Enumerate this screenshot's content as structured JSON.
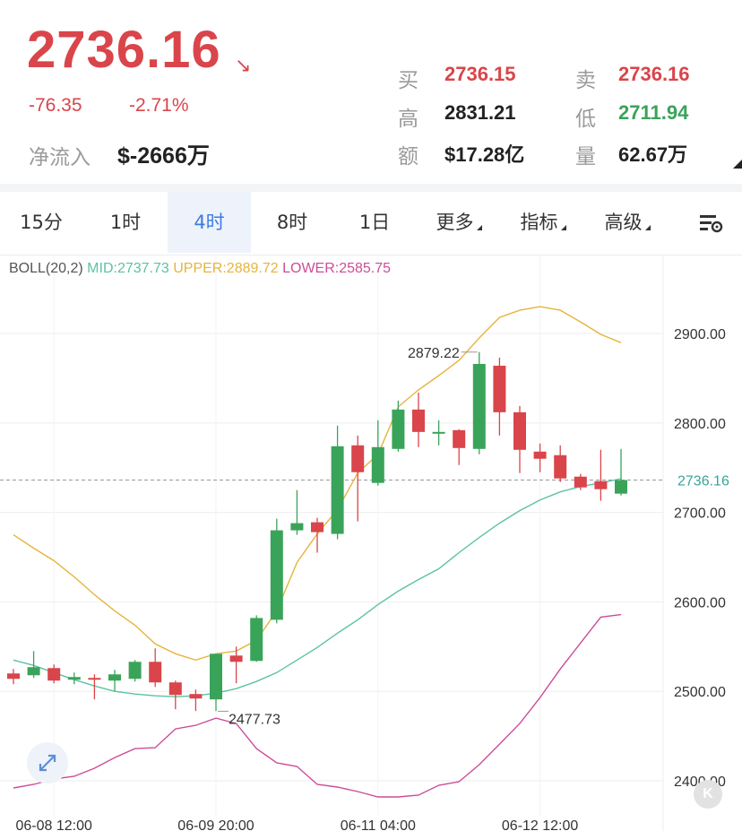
{
  "header": {
    "price": "2736.16",
    "change": "-76.35",
    "change_pct": "-2.71%",
    "inflow_label": "净流入",
    "inflow_value": "$-2666万",
    "stats": {
      "bid_label": "买",
      "bid": "2736.15",
      "ask_label": "卖",
      "ask": "2736.16",
      "high_label": "高",
      "high": "2831.21",
      "low_label": "低",
      "low": "2711.94",
      "turnover_label": "额",
      "turnover": "$17.28亿",
      "volume_label": "量",
      "volume": "62.67万"
    }
  },
  "tabs": [
    {
      "label": "15分"
    },
    {
      "label": "1时"
    },
    {
      "label": "4时",
      "active": true
    },
    {
      "label": "8时"
    },
    {
      "label": "1日"
    },
    {
      "label": "更多",
      "dropdown": true
    },
    {
      "label": "指标",
      "dropdown": true
    },
    {
      "label": "高级",
      "dropdown": true
    }
  ],
  "settings_icon": "chart-settings-icon",
  "expand_icon": "expand-arrows-icon",
  "k_icon": "k-logo-icon",
  "colors": {
    "up": "#3aa35a",
    "down": "#d9454a",
    "mid": "#5cc2a5",
    "upper": "#e6b43c",
    "lower": "#cc4d97",
    "active_tab": "#3d7be0"
  },
  "chart_data": {
    "type": "candlestick",
    "indicator": {
      "name": "BOLL(20,2)",
      "mid_label": "MID:2737.73",
      "upper_label": "UPPER:2889.72",
      "lower_label": "LOWER:2585.75"
    },
    "y_ticks": [
      "2900.00",
      "2800.00",
      "2700.00",
      "2600.00",
      "2500.00",
      "2400.00"
    ],
    "y_tick_values": [
      2900,
      2800,
      2700,
      2600,
      2500,
      2400
    ],
    "ylim": [
      2375,
      2968
    ],
    "x_ticks": [
      {
        "label": "06-08 12:00",
        "index": 2
      },
      {
        "label": "06-09 20:00",
        "index": 10
      },
      {
        "label": "06-11 04:00",
        "index": 18
      },
      {
        "label": "06-12 12:00",
        "index": 26
      }
    ],
    "current_price_label": "2736.16",
    "current_price": 2736.16,
    "max_label": "2879.22",
    "max_value": 2879.22,
    "max_index": 23,
    "min_label": "2477.73",
    "min_value": 2477.73,
    "min_index": 10,
    "candles": [
      {
        "o": 2520,
        "h": 2525,
        "l": 2508,
        "c": 2514
      },
      {
        "o": 2518,
        "h": 2545,
        "l": 2515,
        "c": 2527
      },
      {
        "o": 2526,
        "h": 2530,
        "l": 2509,
        "c": 2512
      },
      {
        "o": 2513,
        "h": 2521,
        "l": 2508,
        "c": 2516
      },
      {
        "o": 2515,
        "h": 2519,
        "l": 2491,
        "c": 2513
      },
      {
        "o": 2512,
        "h": 2524,
        "l": 2500,
        "c": 2519
      },
      {
        "o": 2514,
        "h": 2535,
        "l": 2511,
        "c": 2533
      },
      {
        "o": 2533,
        "h": 2548,
        "l": 2505,
        "c": 2510
      },
      {
        "o": 2510,
        "h": 2512,
        "l": 2480,
        "c": 2496
      },
      {
        "o": 2497,
        "h": 2502,
        "l": 2478,
        "c": 2492
      },
      {
        "o": 2491,
        "h": 2542,
        "l": 2478,
        "c": 2542
      },
      {
        "o": 2540,
        "h": 2550,
        "l": 2509,
        "c": 2533
      },
      {
        "o": 2534,
        "h": 2585,
        "l": 2533,
        "c": 2582
      },
      {
        "o": 2580,
        "h": 2693,
        "l": 2576,
        "c": 2680
      },
      {
        "o": 2680,
        "h": 2725,
        "l": 2675,
        "c": 2688
      },
      {
        "o": 2689,
        "h": 2694,
        "l": 2655,
        "c": 2678
      },
      {
        "o": 2676,
        "h": 2797,
        "l": 2670,
        "c": 2774
      },
      {
        "o": 2775,
        "h": 2786,
        "l": 2690,
        "c": 2745
      },
      {
        "o": 2733,
        "h": 2803,
        "l": 2730,
        "c": 2773
      },
      {
        "o": 2771,
        "h": 2825,
        "l": 2768,
        "c": 2815
      },
      {
        "o": 2815,
        "h": 2834,
        "l": 2773,
        "c": 2790
      },
      {
        "o": 2790,
        "h": 2803,
        "l": 2775,
        "c": 2790
      },
      {
        "o": 2792,
        "h": 2793,
        "l": 2753,
        "c": 2772
      },
      {
        "o": 2771,
        "h": 2879.22,
        "l": 2765,
        "c": 2866
      },
      {
        "o": 2864,
        "h": 2873,
        "l": 2786,
        "c": 2812
      },
      {
        "o": 2812,
        "h": 2819,
        "l": 2744,
        "c": 2770
      },
      {
        "o": 2768,
        "h": 2777,
        "l": 2745,
        "c": 2760
      },
      {
        "o": 2764,
        "h": 2775,
        "l": 2734,
        "c": 2738
      },
      {
        "o": 2740,
        "h": 2743,
        "l": 2725,
        "c": 2728
      },
      {
        "o": 2735,
        "h": 2770,
        "l": 2713,
        "c": 2726
      },
      {
        "o": 2721,
        "h": 2771,
        "l": 2719,
        "c": 2736.16
      }
    ],
    "mid": [
      2535,
      2529,
      2521,
      2513,
      2506,
      2500,
      2497,
      2495,
      2494,
      2495,
      2498,
      2503,
      2511,
      2521,
      2535,
      2549,
      2565,
      2580,
      2597,
      2612,
      2625,
      2637,
      2655,
      2672,
      2688,
      2702,
      2714,
      2723,
      2729,
      2733,
      2737.73
    ],
    "upper": [
      2675,
      2660,
      2646,
      2628,
      2608,
      2590,
      2574,
      2553,
      2542,
      2535,
      2542,
      2545,
      2557,
      2590,
      2644,
      2676,
      2703,
      2744,
      2765,
      2818,
      2837,
      2853,
      2870,
      2895,
      2918,
      2926,
      2930,
      2926,
      2913,
      2899,
      2889.72
    ],
    "lower": [
      2392,
      2396,
      2402,
      2405,
      2414,
      2426,
      2436,
      2437,
      2458,
      2462,
      2470,
      2464,
      2436,
      2420,
      2416,
      2396,
      2393,
      2388,
      2382,
      2382,
      2384,
      2395,
      2399,
      2418,
      2441,
      2464,
      2493,
      2525,
      2554,
      2583,
      2585.75
    ]
  }
}
